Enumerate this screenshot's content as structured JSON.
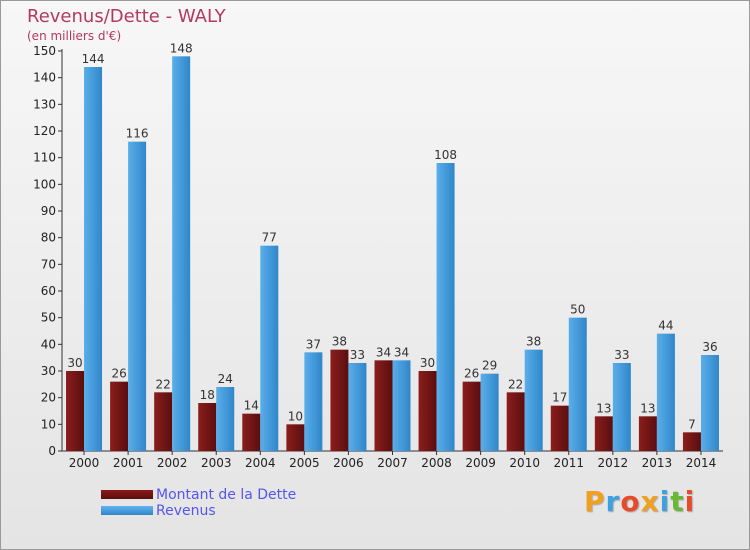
{
  "colors": {
    "title": "#b5385e",
    "debt_top": "#8a1a1a",
    "debt_bottom": "#5a0e0e",
    "revenue_top": "#62b3ee",
    "revenue_bottom": "#2f86c9",
    "legend_text": "#5555ee"
  },
  "logo": {
    "text": "Proxiti"
  },
  "chart_data": {
    "type": "bar",
    "title": "Revenus/Dette - WALY",
    "subtitle": "(en milliers d'€)",
    "categories": [
      "2000",
      "2001",
      "2002",
      "2003",
      "2004",
      "2005",
      "2006",
      "2007",
      "2008",
      "2009",
      "2010",
      "2011",
      "2012",
      "2013",
      "2014"
    ],
    "series": [
      {
        "name": "Montant de la Dette",
        "values": [
          30,
          26,
          22,
          18,
          14,
          10,
          38,
          34,
          30,
          26,
          22,
          17,
          13,
          13,
          7
        ]
      },
      {
        "name": "Revenus",
        "values": [
          144,
          116,
          148,
          24,
          77,
          37,
          33,
          34,
          108,
          29,
          38,
          50,
          33,
          44,
          36
        ]
      }
    ],
    "ylim": [
      0,
      150
    ],
    "yticks": [
      0,
      10,
      20,
      30,
      40,
      50,
      60,
      70,
      80,
      90,
      100,
      110,
      120,
      130,
      140,
      150
    ],
    "grid": false,
    "legend_position": "bottom-left",
    "data_labels": true
  }
}
